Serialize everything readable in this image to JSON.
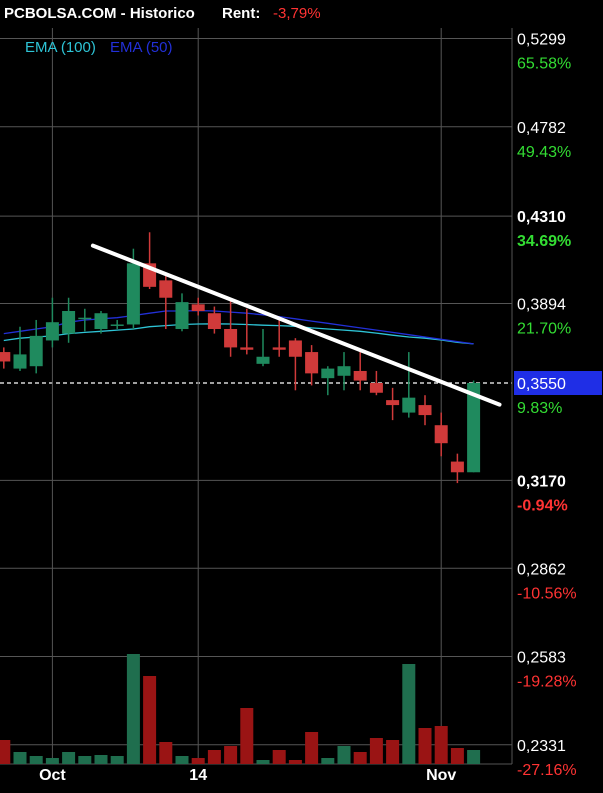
{
  "header": {
    "title": "PCBOLSA.COM - Historico",
    "rent_label": "Rent:",
    "rent_value": "-3,79%"
  },
  "legend": [
    {
      "label": "EMA (100)",
      "color": "#2ec4d6"
    },
    {
      "label": "EMA (50)",
      "color": "#2230d8"
    }
  ],
  "colors": {
    "up": "#1f8a5e",
    "down": "#d03a3a",
    "vol_up": "#1f6e4e",
    "vol_down": "#9a1414",
    "grid": "#555555",
    "axis_text": "#ffffff",
    "pct_positive": "#33dd33",
    "pct_negative": "#ff3333",
    "price_tag_bg": "#1f2ee6",
    "trendline": "#ffffff"
  },
  "chart_data": {
    "type": "candlestick",
    "x_tick_labels": [
      {
        "index": 3,
        "label": "Oct"
      },
      {
        "index": 12,
        "label": "14"
      },
      {
        "index": 27,
        "label": "Nov"
      }
    ],
    "y_ticks": [
      {
        "price": 0.5299,
        "label": "0,5299",
        "pct": "65.58%",
        "bold": false
      },
      {
        "price": 0.4782,
        "label": "0,4782",
        "pct": "49.43%",
        "bold": false
      },
      {
        "price": 0.431,
        "label": "0,4310",
        "pct": "34.69%",
        "bold": true
      },
      {
        "price": 0.3894,
        "label": "0,3894",
        "pct": "21.70%",
        "bold": false
      },
      {
        "price": 0.355,
        "label": "0,3550",
        "pct": "9.83%",
        "bold": false,
        "highlight": true
      },
      {
        "price": 0.317,
        "label": "0,3170",
        "pct": "-0.94%",
        "bold": true
      },
      {
        "price": 0.2862,
        "label": "0,2862",
        "pct": "-10.56%",
        "bold": false
      },
      {
        "price": 0.2583,
        "label": "0,2583",
        "pct": "-19.28%",
        "bold": false
      },
      {
        "price": 0.2331,
        "label": "0,2331",
        "pct": "-27.16%",
        "bold": false
      }
    ],
    "current_price": 0.355,
    "candles": [
      {
        "o": 0.368,
        "h": 0.37,
        "l": 0.361,
        "c": 0.364
      },
      {
        "o": 0.361,
        "h": 0.379,
        "l": 0.36,
        "c": 0.367
      },
      {
        "o": 0.362,
        "h": 0.382,
        "l": 0.359,
        "c": 0.375
      },
      {
        "o": 0.373,
        "h": 0.392,
        "l": 0.37,
        "c": 0.381
      },
      {
        "o": 0.376,
        "h": 0.392,
        "l": 0.372,
        "c": 0.386
      },
      {
        "o": 0.383,
        "h": 0.387,
        "l": 0.377,
        "c": 0.383
      },
      {
        "o": 0.378,
        "h": 0.386,
        "l": 0.376,
        "c": 0.385
      },
      {
        "o": 0.38,
        "h": 0.382,
        "l": 0.378,
        "c": 0.38
      },
      {
        "o": 0.38,
        "h": 0.415,
        "l": 0.378,
        "c": 0.408
      },
      {
        "o": 0.408,
        "h": 0.423,
        "l": 0.396,
        "c": 0.397
      },
      {
        "o": 0.4,
        "h": 0.402,
        "l": 0.378,
        "c": 0.392
      },
      {
        "o": 0.378,
        "h": 0.394,
        "l": 0.377,
        "c": 0.39
      },
      {
        "o": 0.389,
        "h": 0.392,
        "l": 0.384,
        "c": 0.386
      },
      {
        "o": 0.385,
        "h": 0.388,
        "l": 0.376,
        "c": 0.378
      },
      {
        "o": 0.378,
        "h": 0.391,
        "l": 0.366,
        "c": 0.37
      },
      {
        "o": 0.37,
        "h": 0.387,
        "l": 0.367,
        "c": 0.369
      },
      {
        "o": 0.363,
        "h": 0.378,
        "l": 0.362,
        "c": 0.366
      },
      {
        "o": 0.37,
        "h": 0.382,
        "l": 0.366,
        "c": 0.369
      },
      {
        "o": 0.373,
        "h": 0.374,
        "l": 0.352,
        "c": 0.366
      },
      {
        "o": 0.368,
        "h": 0.371,
        "l": 0.354,
        "c": 0.359
      },
      {
        "o": 0.357,
        "h": 0.362,
        "l": 0.35,
        "c": 0.361
      },
      {
        "o": 0.358,
        "h": 0.368,
        "l": 0.352,
        "c": 0.362
      },
      {
        "o": 0.36,
        "h": 0.368,
        "l": 0.352,
        "c": 0.356
      },
      {
        "o": 0.355,
        "h": 0.36,
        "l": 0.35,
        "c": 0.351
      },
      {
        "o": 0.348,
        "h": 0.353,
        "l": 0.34,
        "c": 0.346
      },
      {
        "o": 0.343,
        "h": 0.368,
        "l": 0.341,
        "c": 0.349
      },
      {
        "o": 0.346,
        "h": 0.35,
        "l": 0.338,
        "c": 0.342
      },
      {
        "o": 0.338,
        "h": 0.343,
        "l": 0.326,
        "c": 0.331
      },
      {
        "o": 0.324,
        "h": 0.327,
        "l": 0.316,
        "c": 0.32
      },
      {
        "o": 0.32,
        "h": 0.356,
        "l": 0.32,
        "c": 0.355
      }
    ],
    "volumes": [
      24,
      12,
      8,
      6,
      12,
      8,
      9,
      8,
      110,
      88,
      22,
      8,
      6,
      14,
      18,
      56,
      4,
      14,
      4,
      32,
      6,
      18,
      12,
      26,
      24,
      100,
      36,
      38,
      16,
      14
    ],
    "ema100": [
      0.373,
      0.374,
      0.3745,
      0.375,
      0.376,
      0.3765,
      0.377,
      0.3775,
      0.378,
      0.379,
      0.3795,
      0.38,
      0.3802,
      0.3803,
      0.3802,
      0.38,
      0.3797,
      0.3795,
      0.3792,
      0.3785,
      0.378,
      0.3775,
      0.377,
      0.3762,
      0.3753,
      0.3745,
      0.374,
      0.3732,
      0.3722,
      0.3715
    ],
    "ema50": [
      0.376,
      0.377,
      0.378,
      0.379,
      0.381,
      0.382,
      0.3825,
      0.383,
      0.384,
      0.385,
      0.386,
      0.386,
      0.3862,
      0.386,
      0.3855,
      0.385,
      0.3843,
      0.3835,
      0.3825,
      0.3815,
      0.3805,
      0.3795,
      0.3785,
      0.3775,
      0.3765,
      0.3755,
      0.3745,
      0.3735,
      0.3725,
      0.3715
    ],
    "trendline": {
      "start": {
        "index": 5.5,
        "price": 0.4165
      },
      "end": {
        "index": 30.6,
        "price": 0.3462
      }
    }
  }
}
